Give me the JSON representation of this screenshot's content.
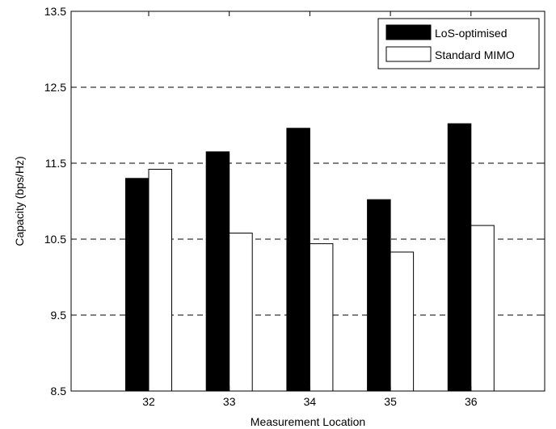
{
  "chart_data": {
    "type": "bar",
    "categories": [
      "32",
      "33",
      "34",
      "35",
      "36"
    ],
    "series": [
      {
        "name": "LoS-optimised",
        "values": [
          11.3,
          11.65,
          11.96,
          11.02,
          12.02
        ],
        "color": "#000000"
      },
      {
        "name": "Standard MIMO",
        "values": [
          11.42,
          10.58,
          10.44,
          10.33,
          10.68
        ],
        "color": "#ffffff"
      }
    ],
    "xlabel": "Measurement Location",
    "ylabel": "Capacity (bps/Hz)",
    "ylim": [
      8.5,
      13.5
    ],
    "yticks": [
      "8.5",
      "9.5",
      "10.5",
      "11.5",
      "12.5",
      "13.5"
    ],
    "grid": "dashed horizontal at 9.5, 10.5, 11.5, 12.5",
    "legend_position": "top-right"
  }
}
